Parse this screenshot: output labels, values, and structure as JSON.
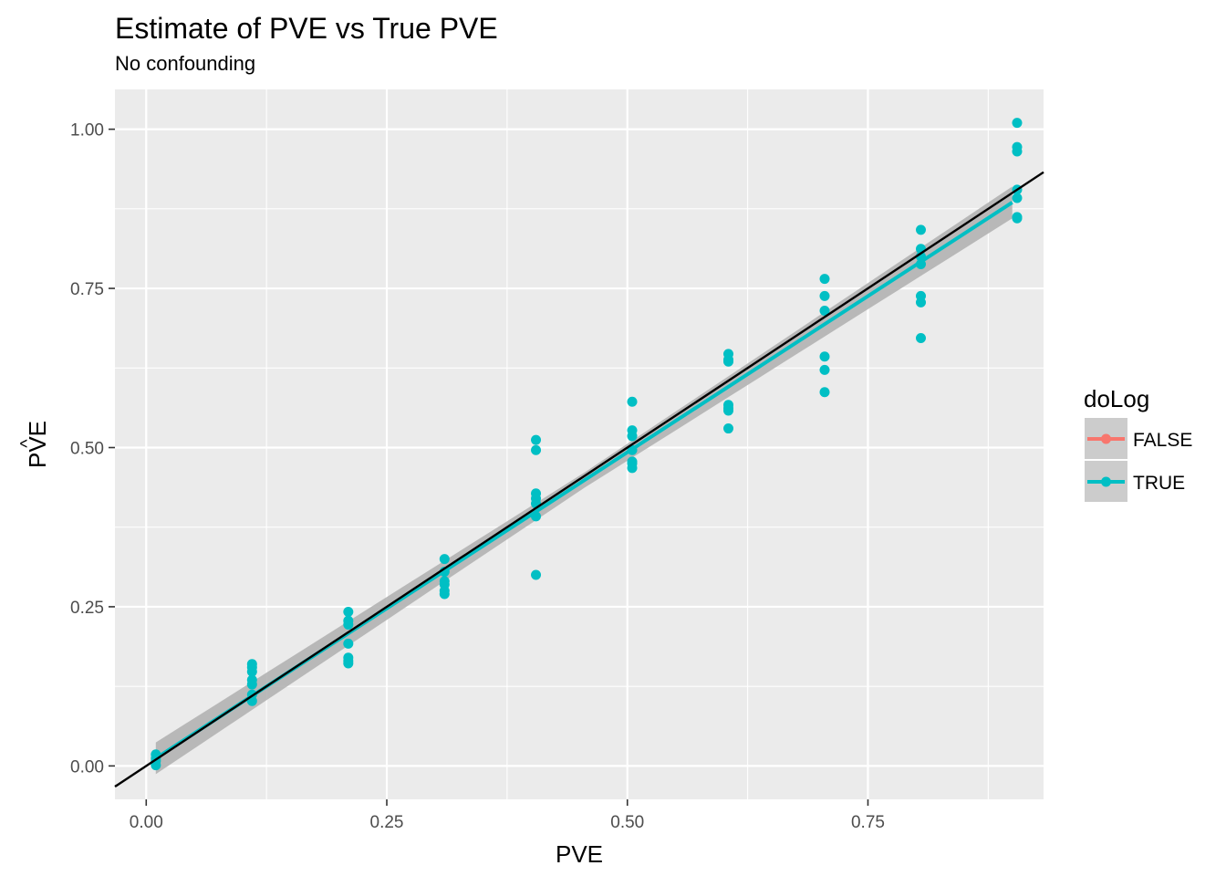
{
  "chart_data": {
    "type": "scatter",
    "title": "Estimate of PVE vs True PVE",
    "subtitle": "No confounding",
    "xlabel": "PVE",
    "ylabel_prefix": "P",
    "ylabel_hat_letter": "V",
    "ylabel_suffix": "E",
    "ylabel_hat_glyph": "^",
    "xlim": [
      -0.0325,
      0.9325
    ],
    "ylim": [
      -0.0525,
      1.0625
    ],
    "x_ticks": [
      0.0,
      0.25,
      0.5,
      0.75
    ],
    "x_tick_labels": [
      "0.00",
      "0.25",
      "0.50",
      "0.75"
    ],
    "y_ticks": [
      0.0,
      0.25,
      0.5,
      0.75,
      1.0
    ],
    "y_tick_labels": [
      "0.00",
      "0.25",
      "0.50",
      "0.75",
      "1.00"
    ],
    "grid": true,
    "background": "#ebebeb",
    "legend": {
      "title": "doLog",
      "position": "right",
      "entries": [
        {
          "label": "FALSE",
          "color": "#f8766d"
        },
        {
          "label": "TRUE",
          "color": "#00bfc4"
        }
      ]
    },
    "reference_line": {
      "slope": 1,
      "intercept": 0,
      "color": "#000000"
    },
    "confidence_band_color": "#b3b3b3",
    "series": [
      {
        "name": "TRUE",
        "color": "#00bfc4",
        "fit_line": {
          "x": [
            0.01,
            0.9
          ],
          "y": [
            0.012,
            0.885
          ]
        },
        "band_halfwidth": [
          0.025,
          0.012,
          0.025
        ],
        "points": [
          {
            "x": 0.01,
            "y": 0.018
          },
          {
            "x": 0.01,
            "y": 0.012
          },
          {
            "x": 0.01,
            "y": 0.008
          },
          {
            "x": 0.01,
            "y": 0.001
          },
          {
            "x": 0.11,
            "y": 0.16
          },
          {
            "x": 0.11,
            "y": 0.155
          },
          {
            "x": 0.11,
            "y": 0.148
          },
          {
            "x": 0.11,
            "y": 0.135
          },
          {
            "x": 0.11,
            "y": 0.128
          },
          {
            "x": 0.11,
            "y": 0.112
          },
          {
            "x": 0.11,
            "y": 0.102
          },
          {
            "x": 0.21,
            "y": 0.242
          },
          {
            "x": 0.21,
            "y": 0.228
          },
          {
            "x": 0.21,
            "y": 0.222
          },
          {
            "x": 0.21,
            "y": 0.192
          },
          {
            "x": 0.21,
            "y": 0.17
          },
          {
            "x": 0.21,
            "y": 0.165
          },
          {
            "x": 0.21,
            "y": 0.161
          },
          {
            "x": 0.31,
            "y": 0.325
          },
          {
            "x": 0.31,
            "y": 0.305
          },
          {
            "x": 0.31,
            "y": 0.29
          },
          {
            "x": 0.31,
            "y": 0.285
          },
          {
            "x": 0.31,
            "y": 0.275
          },
          {
            "x": 0.31,
            "y": 0.27
          },
          {
            "x": 0.405,
            "y": 0.512
          },
          {
            "x": 0.405,
            "y": 0.496
          },
          {
            "x": 0.405,
            "y": 0.428
          },
          {
            "x": 0.405,
            "y": 0.42
          },
          {
            "x": 0.405,
            "y": 0.412
          },
          {
            "x": 0.405,
            "y": 0.392
          },
          {
            "x": 0.405,
            "y": 0.3
          },
          {
            "x": 0.505,
            "y": 0.572
          },
          {
            "x": 0.505,
            "y": 0.527
          },
          {
            "x": 0.505,
            "y": 0.518
          },
          {
            "x": 0.505,
            "y": 0.496
          },
          {
            "x": 0.505,
            "y": 0.478
          },
          {
            "x": 0.505,
            "y": 0.475
          },
          {
            "x": 0.505,
            "y": 0.468
          },
          {
            "x": 0.605,
            "y": 0.647
          },
          {
            "x": 0.605,
            "y": 0.638
          },
          {
            "x": 0.605,
            "y": 0.635
          },
          {
            "x": 0.605,
            "y": 0.567
          },
          {
            "x": 0.605,
            "y": 0.562
          },
          {
            "x": 0.605,
            "y": 0.558
          },
          {
            "x": 0.605,
            "y": 0.53
          },
          {
            "x": 0.705,
            "y": 0.765
          },
          {
            "x": 0.705,
            "y": 0.738
          },
          {
            "x": 0.705,
            "y": 0.715
          },
          {
            "x": 0.705,
            "y": 0.643
          },
          {
            "x": 0.705,
            "y": 0.622
          },
          {
            "x": 0.705,
            "y": 0.587
          },
          {
            "x": 0.805,
            "y": 0.842
          },
          {
            "x": 0.805,
            "y": 0.812
          },
          {
            "x": 0.805,
            "y": 0.8
          },
          {
            "x": 0.805,
            "y": 0.788
          },
          {
            "x": 0.805,
            "y": 0.738
          },
          {
            "x": 0.805,
            "y": 0.728
          },
          {
            "x": 0.805,
            "y": 0.672
          },
          {
            "x": 0.905,
            "y": 1.01
          },
          {
            "x": 0.905,
            "y": 0.972
          },
          {
            "x": 0.905,
            "y": 0.965
          },
          {
            "x": 0.905,
            "y": 0.905
          },
          {
            "x": 0.905,
            "y": 0.892
          },
          {
            "x": 0.905,
            "y": 0.862
          },
          {
            "x": 0.905,
            "y": 0.86
          }
        ]
      }
    ]
  }
}
